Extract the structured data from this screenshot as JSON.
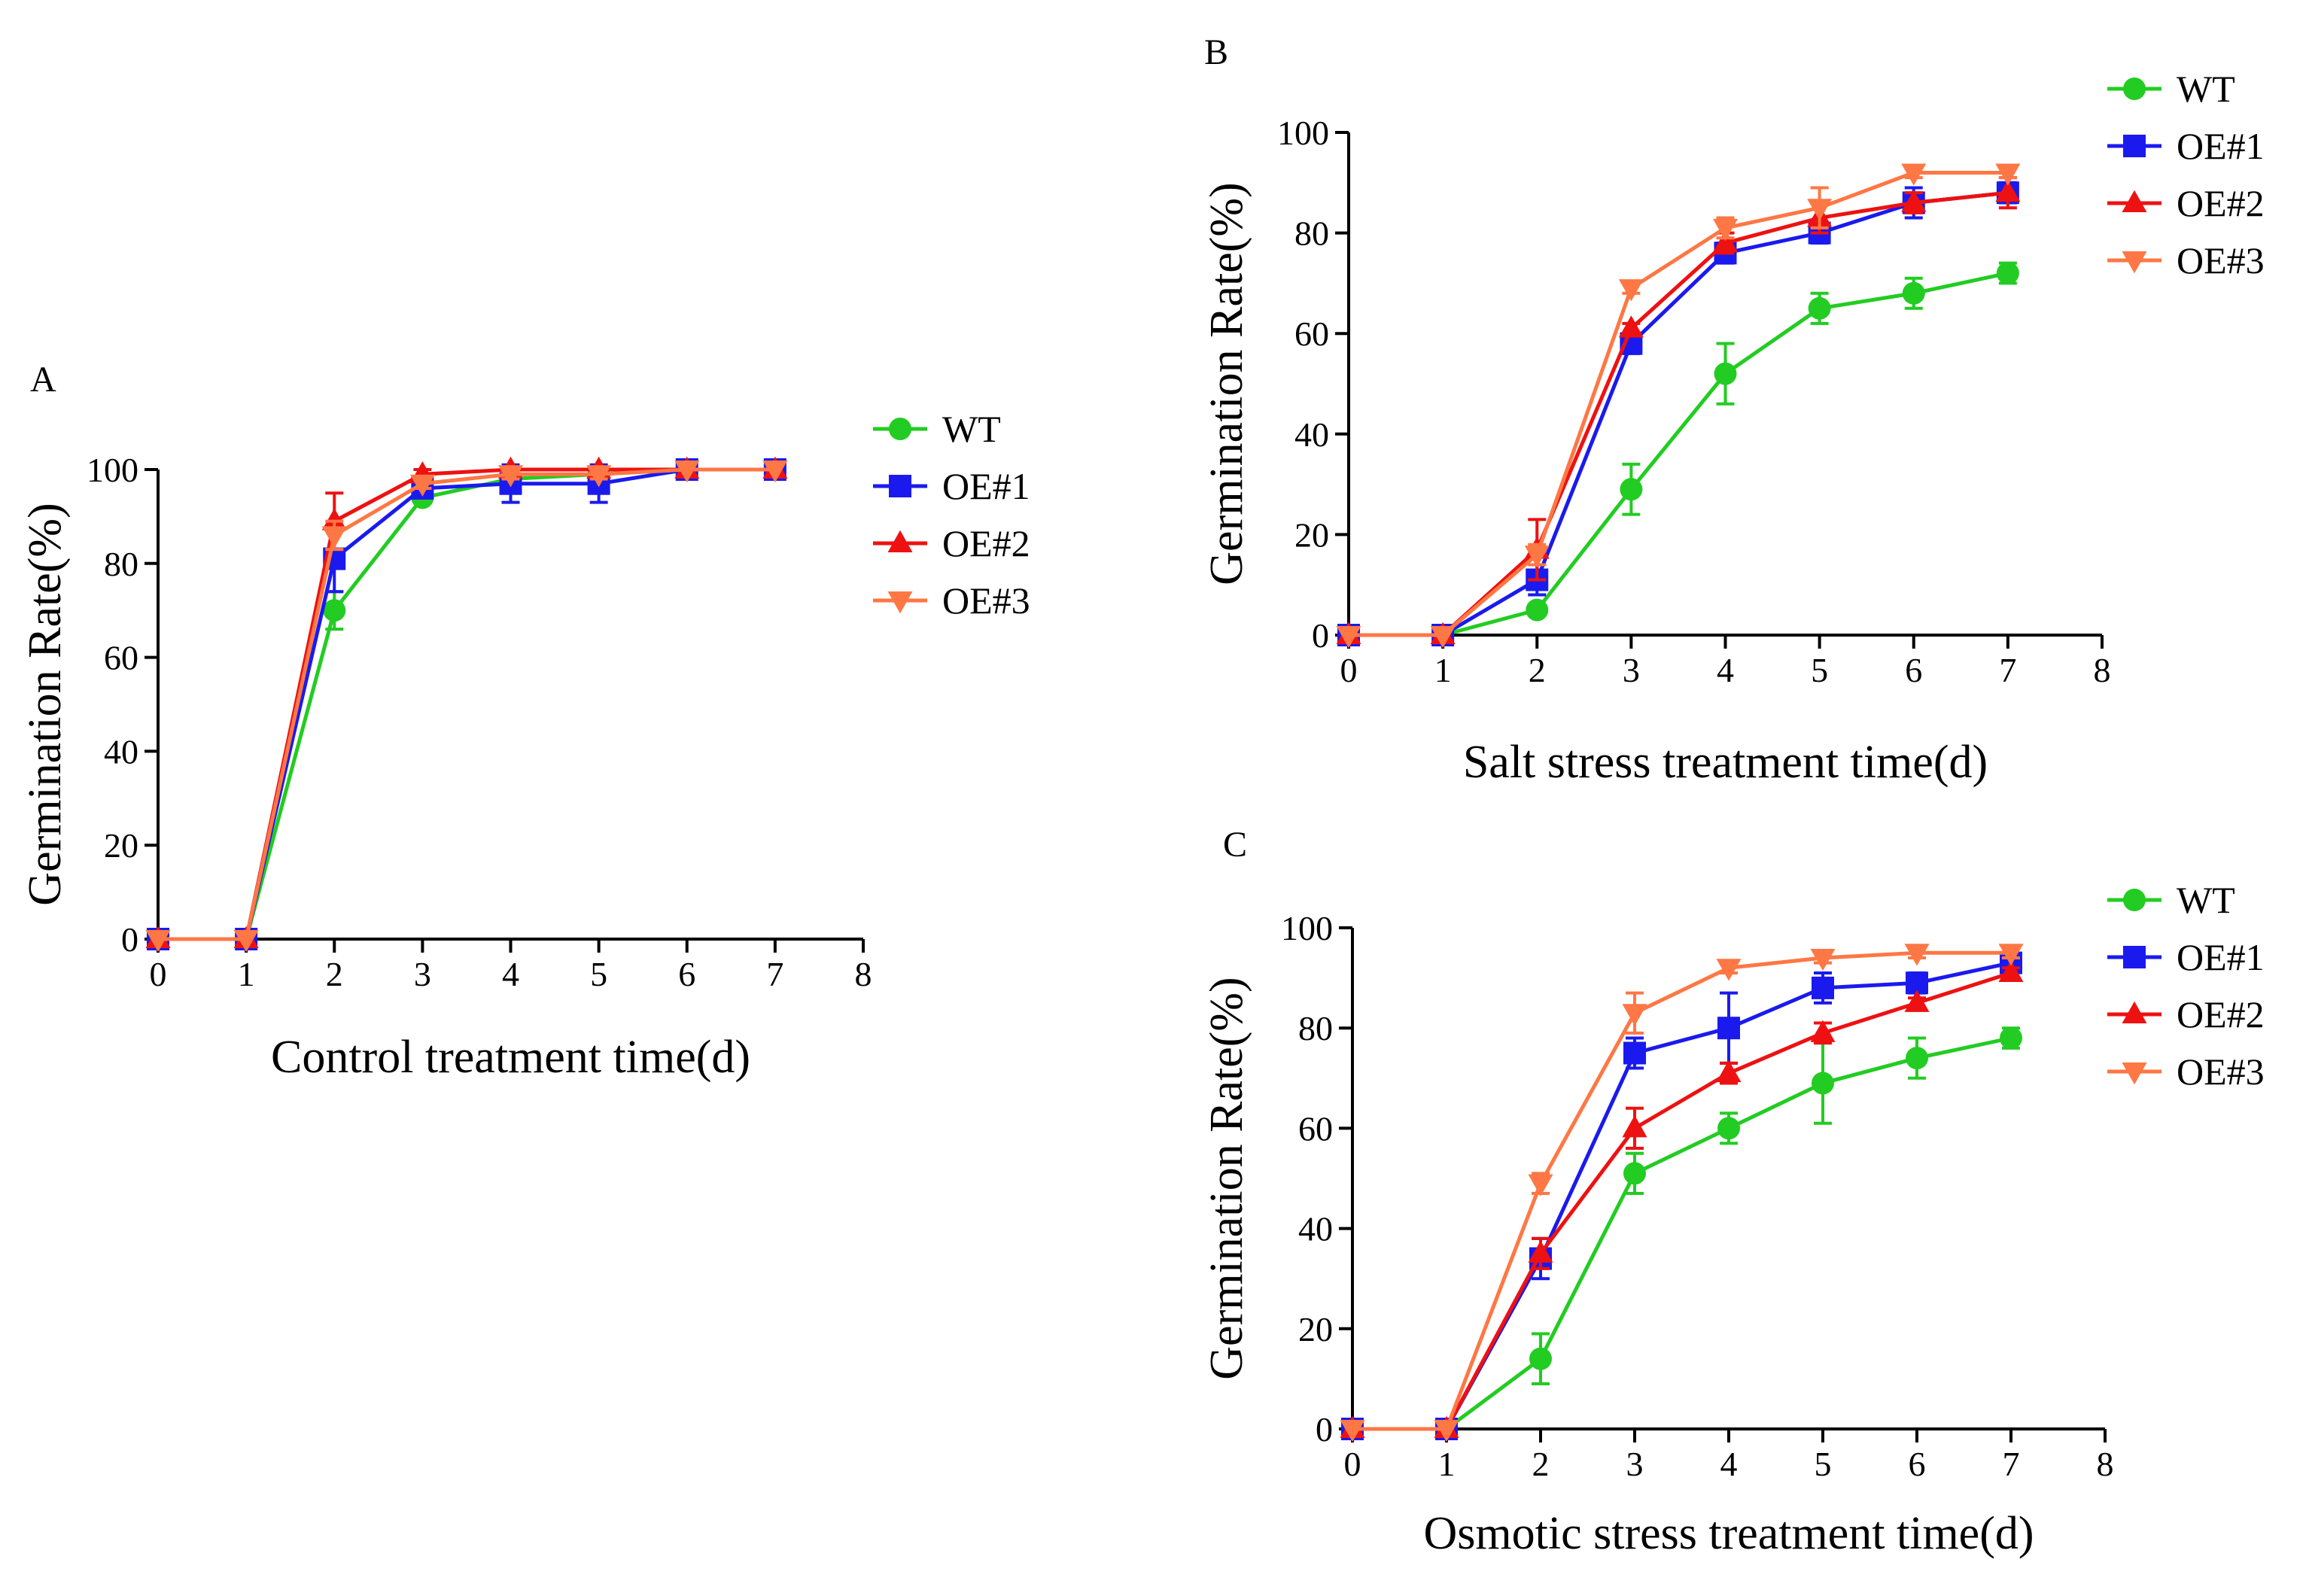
{
  "series_styles": [
    {
      "name": "WT",
      "color": "#22cc22",
      "marker": "circle"
    },
    {
      "name": "OE#1",
      "color": "#1a1aee",
      "marker": "square"
    },
    {
      "name": "OE#2",
      "color": "#ee1111",
      "marker": "triangle-up"
    },
    {
      "name": "OE#3",
      "color": "#ff7744",
      "marker": "triangle-down"
    }
  ],
  "chart_data": [
    {
      "panel": "A",
      "type": "line",
      "xlabel": "Control treatment time(d)",
      "ylabel": "Germination Rate(%)",
      "xlim": [
        0,
        8
      ],
      "ylim": [
        0,
        100
      ],
      "xticks": [
        "0",
        "1",
        "2",
        "3",
        "4",
        "5",
        "6",
        "7",
        "8"
      ],
      "yticks": [
        "0",
        "20",
        "40",
        "60",
        "80",
        "100"
      ],
      "legend": [
        "WT",
        "OE#1",
        "OE#2",
        "OE#3"
      ],
      "x": [
        0,
        1,
        2,
        3,
        4,
        5,
        6,
        7
      ],
      "series": [
        {
          "name": "WT",
          "values": [
            0,
            0,
            70,
            94,
            98,
            99,
            100,
            100
          ],
          "errors": [
            0,
            0,
            4,
            1,
            2,
            1,
            0,
            0
          ]
        },
        {
          "name": "OE#1",
          "values": [
            0,
            0,
            81,
            96,
            97,
            97,
            100,
            100
          ],
          "errors": [
            0,
            0,
            7,
            2,
            4,
            4,
            0,
            0
          ]
        },
        {
          "name": "OE#2",
          "values": [
            0,
            0,
            89,
            99,
            100,
            100,
            100,
            100
          ],
          "errors": [
            0,
            0,
            6,
            1,
            0,
            0,
            0,
            0
          ]
        },
        {
          "name": "OE#3",
          "values": [
            0,
            0,
            86,
            97,
            99,
            99,
            100,
            100
          ],
          "errors": [
            0,
            0,
            3,
            1,
            1,
            1,
            0,
            0
          ]
        }
      ]
    },
    {
      "panel": "B",
      "type": "line",
      "xlabel": "Salt stress treatment time(d)",
      "ylabel": "Germination Rate(%)",
      "xlim": [
        0,
        8
      ],
      "ylim": [
        0,
        100
      ],
      "xticks": [
        "0",
        "1",
        "2",
        "3",
        "4",
        "5",
        "6",
        "7",
        "8"
      ],
      "yticks": [
        "0",
        "20",
        "40",
        "60",
        "80",
        "100"
      ],
      "legend": [
        "WT",
        "OE#1",
        "OE#2",
        "OE#3"
      ],
      "x": [
        0,
        1,
        2,
        3,
        4,
        5,
        6,
        7
      ],
      "series": [
        {
          "name": "WT",
          "values": [
            0,
            0,
            5,
            29,
            52,
            65,
            68,
            72
          ],
          "errors": [
            0,
            0,
            1,
            5,
            6,
            3,
            3,
            2
          ]
        },
        {
          "name": "OE#1",
          "values": [
            0,
            0,
            11,
            58,
            76,
            80,
            86,
            88
          ],
          "errors": [
            0,
            1,
            3,
            2,
            2,
            2,
            3,
            2
          ]
        },
        {
          "name": "OE#2",
          "values": [
            0,
            0,
            17,
            61,
            78,
            83,
            86,
            88
          ],
          "errors": [
            0,
            1,
            6,
            1,
            2,
            3,
            2,
            3
          ]
        },
        {
          "name": "OE#3",
          "values": [
            0,
            0,
            16,
            69,
            81,
            85,
            92,
            92
          ],
          "errors": [
            0,
            0,
            2,
            1,
            2,
            4,
            1,
            1
          ]
        }
      ]
    },
    {
      "panel": "C",
      "type": "line",
      "xlabel": "Osmotic stress treatment time(d)",
      "ylabel": "Germination Rate(%)",
      "xlim": [
        0,
        8
      ],
      "ylim": [
        0,
        100
      ],
      "xticks": [
        "0",
        "1",
        "2",
        "3",
        "4",
        "5",
        "6",
        "7",
        "8"
      ],
      "yticks": [
        "0",
        "20",
        "40",
        "60",
        "80",
        "100"
      ],
      "legend": [
        "WT",
        "OE#1",
        "OE#2",
        "OE#3"
      ],
      "x": [
        0,
        1,
        2,
        3,
        4,
        5,
        6,
        7
      ],
      "series": [
        {
          "name": "WT",
          "values": [
            0,
            0,
            14,
            51,
            60,
            69,
            74,
            78
          ],
          "errors": [
            0,
            0,
            5,
            4,
            3,
            8,
            4,
            2
          ]
        },
        {
          "name": "OE#1",
          "values": [
            0,
            0,
            34,
            75,
            80,
            88,
            89,
            93
          ],
          "errors": [
            0,
            0,
            4,
            3,
            7,
            3,
            2,
            1
          ]
        },
        {
          "name": "OE#2",
          "values": [
            0,
            0,
            35,
            60,
            71,
            79,
            85,
            91
          ],
          "errors": [
            0,
            0,
            3,
            4,
            2,
            2,
            1,
            1
          ]
        },
        {
          "name": "OE#3",
          "values": [
            0,
            0,
            49,
            83,
            92,
            94,
            95,
            95
          ],
          "errors": [
            0,
            0,
            2,
            4,
            1,
            1,
            1,
            1
          ]
        }
      ]
    }
  ]
}
